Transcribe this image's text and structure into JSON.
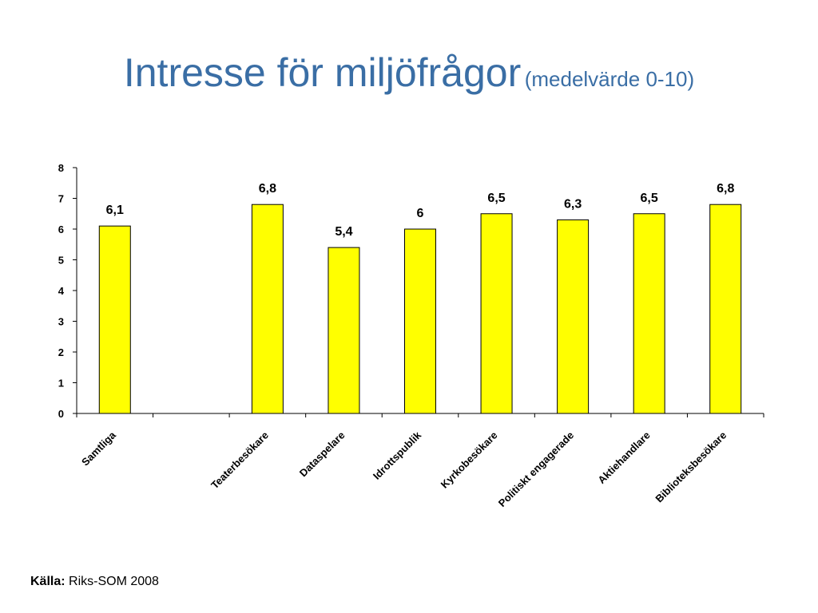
{
  "title": {
    "main": "Intresse för miljöfrågor",
    "sub": "(medelvärde 0-10)"
  },
  "source": {
    "label": "Källa:",
    "text": " Riks-SOM 2008"
  },
  "colors": {
    "title": "#3a6ea5",
    "bar_fill": "#ffff00",
    "bar_stroke": "#000000",
    "axis": "#000000"
  },
  "chart_data": {
    "type": "bar",
    "title": "",
    "xlabel": "",
    "ylabel": "",
    "ylim": [
      0,
      8
    ],
    "yticks": [
      0,
      1,
      2,
      3,
      4,
      5,
      6,
      7,
      8
    ],
    "grid": false,
    "legend": "none",
    "categories": [
      "Samtliga",
      "",
      "Teaterbesökare",
      "Dataspelare",
      "Idrottspublik",
      "Kyrkobesökare",
      "Politiskt engagerade",
      "Aktiehandlare",
      "Biblioteksbesökare"
    ],
    "values": [
      6.1,
      null,
      6.8,
      5.4,
      6,
      6.5,
      6.3,
      6.5,
      6.8
    ],
    "value_labels": [
      "6,1",
      "",
      "6,8",
      "5,4",
      "6",
      "6,5",
      "6,3",
      "6,5",
      "6,8"
    ]
  }
}
